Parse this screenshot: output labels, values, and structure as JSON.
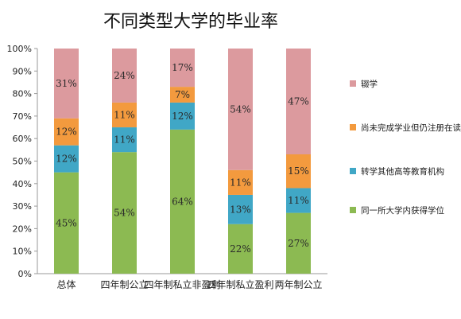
{
  "chart_data": {
    "type": "bar",
    "stacked": true,
    "title": "不同类型大学的毕业率",
    "categories": [
      "总体",
      "四年制公立",
      "四年制私立非盈利",
      "四年制私立盈利",
      "两年制公立"
    ],
    "ylim": [
      0,
      100
    ],
    "ytick_labels": [
      "0%",
      "10%",
      "20%",
      "30%",
      "40%",
      "50%",
      "60%",
      "70%",
      "80%",
      "90%",
      "100%"
    ],
    "grid": false,
    "legend_position": "right",
    "series": [
      {
        "name": "同一所大学内获得学位",
        "color": "#8cba52",
        "values": [
          45,
          54,
          64,
          22,
          27
        ],
        "labels": [
          "45%",
          "54%",
          "64%",
          "22%",
          "27%"
        ]
      },
      {
        "name": "转学其他高等教育机构",
        "color": "#40a7c6",
        "values": [
          12,
          11,
          12,
          13,
          11
        ],
        "labels": [
          "12%",
          "11%",
          "12%",
          "13%",
          "11%"
        ]
      },
      {
        "name": "尚未完成学业但仍注册在读",
        "color": "#f39a3e",
        "values": [
          12,
          11,
          7,
          11,
          15
        ],
        "labels": [
          "12%",
          "11%",
          "7%",
          "11%",
          "15%"
        ]
      },
      {
        "name": "辍学",
        "color": "#dc9a9e",
        "values": [
          31,
          24,
          17,
          54,
          47
        ],
        "labels": [
          "31%",
          "24%",
          "17%",
          "54%",
          "47%"
        ]
      }
    ]
  }
}
